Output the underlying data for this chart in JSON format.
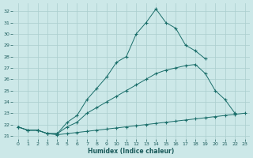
{
  "xlabel": "Humidex (Indice chaleur)",
  "bg_color": "#cce8e8",
  "grid_color": "#aacece",
  "line_color": "#1a6e6a",
  "xlim": [
    -0.5,
    23.5
  ],
  "ylim": [
    20.7,
    32.7
  ],
  "yticks": [
    21,
    22,
    23,
    24,
    25,
    26,
    27,
    28,
    29,
    30,
    31,
    32
  ],
  "xticks": [
    0,
    1,
    2,
    3,
    4,
    5,
    6,
    7,
    8,
    9,
    10,
    11,
    12,
    13,
    14,
    15,
    16,
    17,
    18,
    19,
    20,
    21,
    22,
    23
  ],
  "series": [
    {
      "x": [
        0,
        1,
        2,
        3,
        4,
        5,
        6,
        7,
        8,
        9,
        10,
        11,
        12,
        13,
        14,
        15,
        16,
        17,
        18,
        19
      ],
      "y": [
        21.8,
        21.5,
        21.5,
        21.2,
        21.2,
        22.2,
        22.8,
        24.2,
        25.2,
        26.2,
        27.5,
        28.0,
        30.0,
        31.0,
        32.2,
        31.0,
        30.5,
        29.0,
        28.5,
        27.8
      ]
    },
    {
      "x": [
        0,
        1,
        2,
        3,
        4,
        5,
        6,
        7,
        8,
        9,
        10,
        11,
        12,
        13,
        14,
        15,
        16,
        17,
        18,
        19,
        20,
        21,
        22
      ],
      "y": [
        21.8,
        21.5,
        21.5,
        21.2,
        21.2,
        21.8,
        22.2,
        23.0,
        23.5,
        24.0,
        24.5,
        25.0,
        25.5,
        26.0,
        26.5,
        26.8,
        27.0,
        27.2,
        27.3,
        26.5,
        25.0,
        24.2,
        23.0
      ]
    },
    {
      "x": [
        0,
        1,
        2,
        3,
        4,
        5,
        6,
        7,
        8,
        9,
        10,
        11,
        12,
        13,
        14,
        15,
        16,
        17,
        18,
        19,
        20,
        21,
        22,
        23
      ],
      "y": [
        21.8,
        21.5,
        21.5,
        21.2,
        21.1,
        21.2,
        21.3,
        21.4,
        21.5,
        21.6,
        21.7,
        21.8,
        21.9,
        22.0,
        22.1,
        22.2,
        22.3,
        22.4,
        22.5,
        22.6,
        22.7,
        22.8,
        22.9,
        23.0
      ]
    }
  ]
}
